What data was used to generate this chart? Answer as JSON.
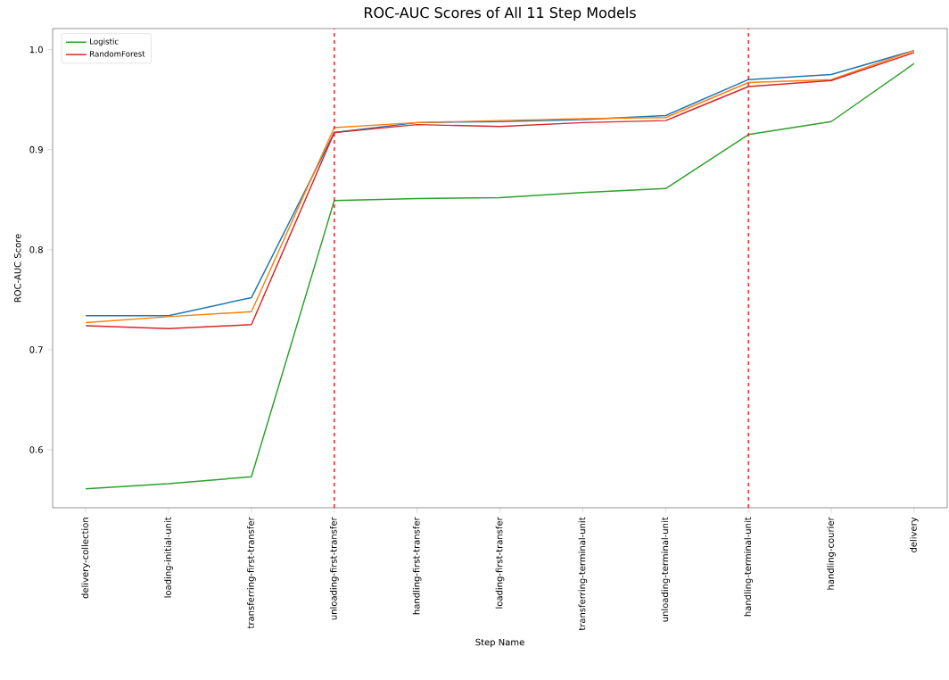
{
  "chart_data": {
    "type": "line",
    "title": "ROC-AUC Scores of All 11 Step Models",
    "xlabel": "Step Name",
    "ylabel": "ROC-AUC Score",
    "categories": [
      "delivery-collection",
      "loading-initial-unit",
      "transferring-first-transfer",
      "unloading-first-transfer",
      "handling-first-transfer",
      "loading-first-transfer",
      "transferring-terminal-unit",
      "unloading-terminal-unit",
      "handling-terminal-unit",
      "handling-courier",
      "delivery"
    ],
    "series": [
      {
        "color": "#1f77b4",
        "values": [
          0.734,
          0.734,
          0.752,
          0.917,
          0.927,
          0.928,
          0.93,
          0.934,
          0.97,
          0.975,
          0.999
        ]
      },
      {
        "color": "#ff7f0e",
        "values": [
          0.727,
          0.733,
          0.738,
          0.922,
          0.927,
          0.929,
          0.931,
          0.932,
          0.967,
          0.97,
          0.999
        ]
      },
      {
        "name": "Logistic",
        "color": "#2ca02c",
        "values": [
          0.561,
          0.566,
          0.573,
          0.849,
          0.851,
          0.852,
          0.857,
          0.861,
          0.915,
          0.928,
          0.986
        ]
      },
      {
        "name": "RandomForest",
        "color": "#d62728",
        "values": [
          0.724,
          0.721,
          0.725,
          0.917,
          0.925,
          0.923,
          0.927,
          0.929,
          0.963,
          0.969,
          0.997
        ]
      }
    ],
    "ylim": [
      0.542,
      1.021
    ],
    "yticks": [
      {
        "value": 0.6,
        "label": "0.6"
      },
      {
        "value": 0.7,
        "label": "0.7"
      },
      {
        "value": 0.8,
        "label": "0.8"
      },
      {
        "value": 0.9,
        "label": "0.9"
      },
      {
        "value": 1.0,
        "label": "1.0"
      }
    ],
    "ref_lines": [
      {
        "axis": "x",
        "value": "unloading-first-transfer",
        "color": "#ff0000",
        "line_style": "dashed"
      },
      {
        "axis": "x",
        "value": "handling-terminal-unit",
        "color": "#ff0000",
        "line_style": "dashed"
      }
    ],
    "legend": "top left",
    "grid": false,
    "marker": "none",
    "line_style": "solid"
  }
}
